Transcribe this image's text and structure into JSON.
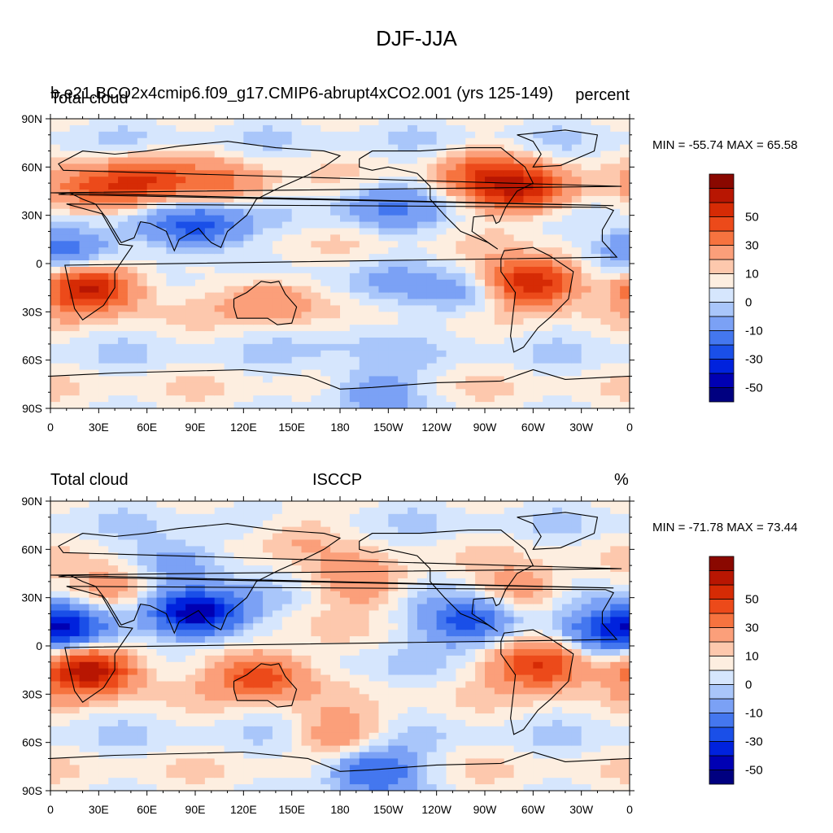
{
  "figure": {
    "title": "DJF-JJA",
    "ticks": {
      "lat_labels": [
        "90N",
        "60N",
        "30N",
        "0",
        "30S",
        "60S",
        "90S"
      ],
      "lon_labels": [
        "0",
        "30E",
        "60E",
        "90E",
        "120E",
        "150E",
        "180",
        "150W",
        "120W",
        "90W",
        "60W",
        "30W",
        "0"
      ]
    }
  },
  "panels": [
    {
      "left_title": "Total cloud",
      "center_title": "b.e21.BCO2x4cmip6.f09_g17.CMIP6-abrupt4xCO2.001 (yrs 125-149)",
      "right_title": "percent",
      "minmax": "MIN = -55.74 MAX =  65.58",
      "colorbar_labels": [
        "50",
        "30",
        "10",
        "0",
        "-10",
        "-30",
        "-50"
      ]
    },
    {
      "left_title": "Total cloud",
      "center_title": "ISCCP",
      "right_title": "%",
      "minmax": "MIN = -71.78 MAX =  73.44",
      "colorbar_labels": [
        "50",
        "30",
        "10",
        "0",
        "-10",
        "-30",
        "-50"
      ]
    }
  ],
  "palette": [
    "#000080",
    "#0000b3",
    "#0022dd",
    "#1a4fe8",
    "#4477ef",
    "#7ba1f5",
    "#a9c6fa",
    "#d6e6fd",
    "#fdeee0",
    "#fdc8ad",
    "#fb9f7a",
    "#f6733f",
    "#ec4a1a",
    "#d62b05",
    "#b81602",
    "#8a0800"
  ],
  "chart_data": [
    {
      "type": "heatmap",
      "title": "DJF-JJA",
      "left_title": "Total cloud",
      "center_title": "b.e21.BCO2x4cmip6.f09_g17.CMIP6-abrupt4xCO2.001 (yrs 125-149)",
      "units": "percent",
      "x_ticks": [
        "0",
        "30E",
        "60E",
        "90E",
        "120E",
        "150E",
        "180",
        "150W",
        "120W",
        "90W",
        "60W",
        "30W",
        "0"
      ],
      "y_ticks": [
        "90N",
        "60N",
        "30N",
        "0",
        "30S",
        "60S",
        "90S"
      ],
      "xlim": [
        0,
        360
      ],
      "ylim": [
        -90,
        90
      ],
      "min": -55.74,
      "max": 65.58,
      "contour_levels": [
        -60,
        -50,
        -40,
        -30,
        -20,
        -10,
        -5,
        0,
        5,
        10,
        20,
        30,
        40,
        50,
        60
      ],
      "features": [
        {
          "lon": 60,
          "lat": 52,
          "value": 32
        },
        {
          "lon": 30,
          "lat": 45,
          "value": 28
        },
        {
          "lon": 110,
          "lat": 50,
          "value": 18
        },
        {
          "lon": 270,
          "lat": 55,
          "value": 28
        },
        {
          "lon": 295,
          "lat": 45,
          "value": 45
        },
        {
          "lon": 25,
          "lat": -15,
          "value": 58
        },
        {
          "lon": 300,
          "lat": -12,
          "value": 55
        },
        {
          "lon": 135,
          "lat": -22,
          "value": 22
        },
        {
          "lon": 90,
          "lat": 22,
          "value": -38
        },
        {
          "lon": 8,
          "lat": 8,
          "value": -32
        },
        {
          "lon": 210,
          "lat": 35,
          "value": -18
        },
        {
          "lon": 205,
          "lat": -10,
          "value": -8
        },
        {
          "lon": 260,
          "lat": -20,
          "value": -15
        },
        {
          "lon": 180,
          "lat": -45,
          "value": -6
        },
        {
          "lon": 200,
          "lat": -80,
          "value": -20
        }
      ]
    },
    {
      "type": "heatmap",
      "title": "DJF-JJA",
      "left_title": "Total cloud",
      "center_title": "ISCCP",
      "units": "%",
      "x_ticks": [
        "0",
        "30E",
        "60E",
        "90E",
        "120E",
        "150E",
        "180",
        "150W",
        "120W",
        "90W",
        "60W",
        "30W",
        "0"
      ],
      "y_ticks": [
        "90N",
        "60N",
        "30N",
        "0",
        "30S",
        "60S",
        "90S"
      ],
      "xlim": [
        0,
        360
      ],
      "ylim": [
        -90,
        90
      ],
      "min": -71.78,
      "max": 73.44,
      "contour_levels": [
        -60,
        -50,
        -40,
        -30,
        -20,
        -10,
        -5,
        0,
        5,
        10,
        20,
        30,
        40,
        50,
        60
      ],
      "features": [
        {
          "lon": 25,
          "lat": -15,
          "value": 62
        },
        {
          "lon": 305,
          "lat": -12,
          "value": 48
        },
        {
          "lon": 130,
          "lat": -18,
          "value": 42
        },
        {
          "lon": 40,
          "lat": 35,
          "value": 22
        },
        {
          "lon": 195,
          "lat": 38,
          "value": 20
        },
        {
          "lon": 295,
          "lat": 35,
          "value": 18
        },
        {
          "lon": 90,
          "lat": 20,
          "value": -62
        },
        {
          "lon": 10,
          "lat": 12,
          "value": -45
        },
        {
          "lon": 260,
          "lat": 15,
          "value": -40
        },
        {
          "lon": 345,
          "lat": 10,
          "value": -30
        },
        {
          "lon": 80,
          "lat": 52,
          "value": -20
        },
        {
          "lon": 200,
          "lat": -78,
          "value": -35
        },
        {
          "lon": 180,
          "lat": -55,
          "value": 18
        },
        {
          "lon": 150,
          "lat": 70,
          "value": 12
        }
      ]
    }
  ]
}
